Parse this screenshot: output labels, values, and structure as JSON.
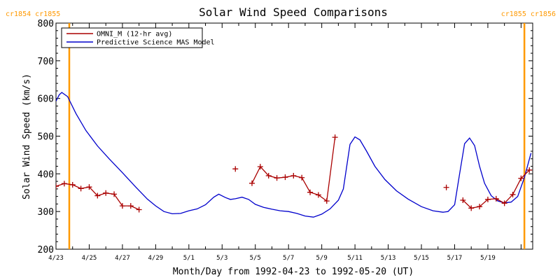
{
  "chart_data": {
    "type": "line",
    "title": "Solar Wind Speed Comparisons",
    "xlabel": "Month/Day from 1992-04-23 to 1992-05-20 (UT)",
    "ylabel": "Solar Wind Speed (km/s)",
    "ylim": [
      200,
      800
    ],
    "xlim": [
      0,
      28.7
    ],
    "yticks": [
      200,
      300,
      400,
      500,
      600,
      700,
      800
    ],
    "xticks": [
      {
        "x": 0,
        "label": "4/23"
      },
      {
        "x": 2,
        "label": "4/25"
      },
      {
        "x": 4,
        "label": "4/27"
      },
      {
        "x": 6,
        "label": "4/29"
      },
      {
        "x": 8,
        "label": "5/1"
      },
      {
        "x": 10,
        "label": "5/3"
      },
      {
        "x": 12,
        "label": "5/5"
      },
      {
        "x": 14,
        "label": "5/7"
      },
      {
        "x": 16,
        "label": "5/9"
      },
      {
        "x": 18,
        "label": "5/11"
      },
      {
        "x": 20,
        "label": "5/13"
      },
      {
        "x": 22,
        "label": "5/15"
      },
      {
        "x": 24,
        "label": "5/17"
      },
      {
        "x": 26,
        "label": "5/19"
      }
    ],
    "carrington_markers": [
      {
        "x": 0.8,
        "label": "cr1854 cr1855",
        "align": "left"
      },
      {
        "x": 28.2,
        "label": "cr1855 cr1856",
        "align": "right"
      }
    ],
    "legend_position": "top-left",
    "series": [
      {
        "name": "OMNI_M (12-hr avg)",
        "color": "#aa0000",
        "marker": "plus",
        "segments": [
          [
            [
              0.0,
              367
            ],
            [
              0.5,
              374
            ],
            [
              1.0,
              371
            ],
            [
              1.5,
              361
            ],
            [
              2.0,
              365
            ],
            [
              2.5,
              342
            ],
            [
              3.0,
              349
            ],
            [
              3.5,
              346
            ],
            [
              4.0,
              315
            ],
            [
              4.5,
              315
            ],
            [
              5.0,
              305
            ]
          ],
          [
            [
              10.8,
              413
            ]
          ],
          [
            [
              11.8,
              375
            ],
            [
              12.3,
              419
            ],
            [
              12.8,
              395
            ],
            [
              13.3,
              389
            ],
            [
              13.8,
              391
            ],
            [
              14.3,
              395
            ],
            [
              14.8,
              390
            ],
            [
              15.3,
              351
            ],
            [
              15.8,
              344
            ],
            [
              16.3,
              328
            ],
            [
              16.8,
              497
            ]
          ],
          [
            [
              23.5,
              364
            ]
          ],
          [
            [
              24.5,
              330
            ],
            [
              25.0,
              309
            ],
            [
              25.5,
              313
            ],
            [
              26.0,
              332
            ],
            [
              26.5,
              334
            ],
            [
              27.0,
              322
            ],
            [
              27.5,
              345
            ],
            [
              28.0,
              388
            ],
            [
              28.5,
              410
            ]
          ]
        ]
      },
      {
        "name": "Predictive Science MAS Model",
        "color": "#0000cc",
        "points": [
          [
            0,
            593
          ],
          [
            0.2,
            610
          ],
          [
            0.35,
            616
          ],
          [
            0.7,
            605
          ],
          [
            1.2,
            560
          ],
          [
            1.8,
            515
          ],
          [
            2.5,
            474
          ],
          [
            3.2,
            440
          ],
          [
            4.0,
            403
          ],
          [
            4.8,
            365
          ],
          [
            5.5,
            333
          ],
          [
            6.0,
            315
          ],
          [
            6.5,
            300
          ],
          [
            7.0,
            294
          ],
          [
            7.5,
            295
          ],
          [
            8.0,
            302
          ],
          [
            8.5,
            307
          ],
          [
            9.0,
            318
          ],
          [
            9.5,
            338
          ],
          [
            9.8,
            346
          ],
          [
            10.2,
            337
          ],
          [
            10.5,
            332
          ],
          [
            10.8,
            334
          ],
          [
            11.2,
            338
          ],
          [
            11.6,
            332
          ],
          [
            12.0,
            319
          ],
          [
            12.5,
            311
          ],
          [
            13.0,
            306
          ],
          [
            13.5,
            302
          ],
          [
            14.0,
            300
          ],
          [
            14.5,
            295
          ],
          [
            15.0,
            288
          ],
          [
            15.5,
            285
          ],
          [
            16.0,
            293
          ],
          [
            16.5,
            307
          ],
          [
            17.0,
            330
          ],
          [
            17.3,
            360
          ],
          [
            17.7,
            478
          ],
          [
            18.0,
            498
          ],
          [
            18.3,
            490
          ],
          [
            18.7,
            460
          ],
          [
            19.2,
            420
          ],
          [
            19.8,
            385
          ],
          [
            20.5,
            355
          ],
          [
            21.2,
            333
          ],
          [
            22.0,
            313
          ],
          [
            22.7,
            302
          ],
          [
            23.3,
            298
          ],
          [
            23.6,
            300
          ],
          [
            24.0,
            318
          ],
          [
            24.3,
            400
          ],
          [
            24.6,
            480
          ],
          [
            24.9,
            495
          ],
          [
            25.2,
            475
          ],
          [
            25.5,
            420
          ],
          [
            25.8,
            375
          ],
          [
            26.2,
            342
          ],
          [
            26.6,
            328
          ],
          [
            27.0,
            323
          ],
          [
            27.4,
            325
          ],
          [
            27.8,
            340
          ],
          [
            28.2,
            390
          ],
          [
            28.6,
            455
          ]
        ]
      }
    ]
  }
}
